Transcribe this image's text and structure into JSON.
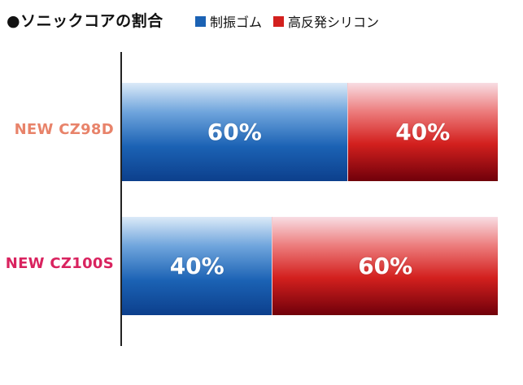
{
  "chart_data": {
    "type": "bar",
    "orientation": "horizontal",
    "stacked": true,
    "title": "●ソニックコアの割合",
    "xlim": [
      0,
      100
    ],
    "grid": false,
    "legend_position": "top",
    "categories": [
      "NEW CZ98D",
      "NEW CZ100S"
    ],
    "category_colors": [
      "#e8836a",
      "#d9235f"
    ],
    "series": [
      {
        "name": "制振ゴム",
        "color": "#1b62b4",
        "values": [
          60,
          40
        ],
        "labels": [
          "60%",
          "40%"
        ]
      },
      {
        "name": "高反発シリコン",
        "color": "#d3201e",
        "values": [
          40,
          60
        ],
        "labels": [
          "40%",
          "60%"
        ]
      }
    ]
  }
}
